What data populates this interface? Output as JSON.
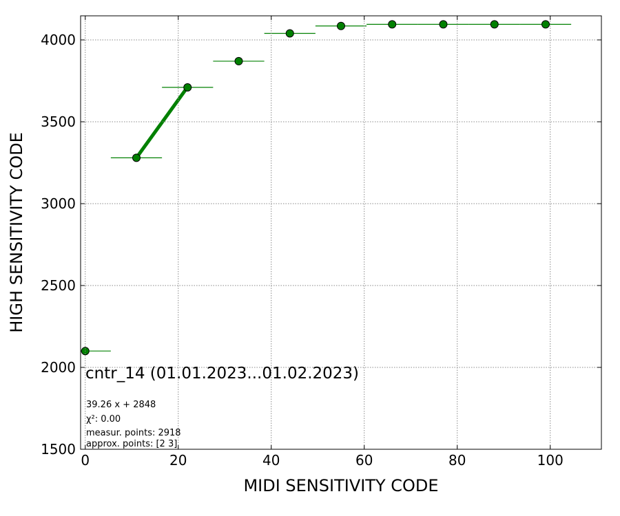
{
  "chart_data": {
    "type": "scatter",
    "xlabel": "MIDI SENSITIVITY CODE",
    "ylabel": "HIGH SENSITIVITY CODE",
    "x": [
      0,
      11,
      22,
      33,
      44,
      55,
      66,
      77,
      88,
      99
    ],
    "series": [
      {
        "name": "cntr_14 (01.01.2023...01.02.2023)",
        "color": "#008000",
        "values": [
          2100,
          3280,
          3710,
          3870,
          4040,
          4085,
          4095,
          4095,
          4095,
          4095
        ],
        "xerr": [
          5.5,
          5.5,
          5.5,
          5.5,
          5.5,
          5.5,
          5.5,
          5.5,
          5.5,
          5.5
        ]
      }
    ],
    "fit": {
      "x": [
        11,
        22
      ],
      "y": [
        3280,
        3712
      ],
      "color": "#008000"
    },
    "annotations": [
      "39.26 x + 2848",
      "χ²: 0.00",
      "measur. points: 2918",
      "approx. points: [2 3]"
    ],
    "xlim": [
      -1,
      111
    ],
    "ylim": [
      1500,
      4147
    ],
    "xticks": [
      0,
      20,
      40,
      60,
      80,
      100
    ],
    "yticks": [
      1500,
      2000,
      2500,
      3000,
      3500,
      4000
    ],
    "grid": true
  }
}
